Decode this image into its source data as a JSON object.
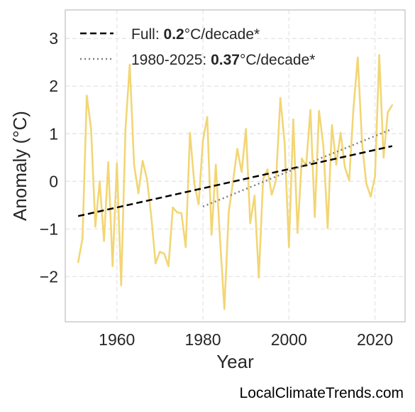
{
  "chart_data": {
    "type": "line",
    "title": "",
    "xlabel": "Year",
    "ylabel": "Anomaly (°C)",
    "xlim": [
      1948,
      2027
    ],
    "ylim": [
      -2.95,
      3.6
    ],
    "x_ticks": [
      1960,
      1980,
      2000,
      2020
    ],
    "y_ticks": [
      -2,
      -1,
      0,
      1,
      2,
      3
    ],
    "y_tick_labels": [
      "−2",
      "−1",
      "0",
      "1",
      "2",
      "3"
    ],
    "grid": true,
    "legend_position": "top-left",
    "colors": {
      "series": "#f2d675",
      "full_trend": "#000000",
      "recent_trend": "#808080"
    },
    "series": [
      {
        "values": [
          {
            "x": 1951,
            "y": -1.7
          },
          {
            "x": 1952,
            "y": -1.2
          },
          {
            "x": 1953,
            "y": 1.8
          },
          {
            "x": 1954,
            "y": 1.1
          },
          {
            "x": 1955,
            "y": -0.95
          },
          {
            "x": 1956,
            "y": 0.0
          },
          {
            "x": 1957,
            "y": -1.25
          },
          {
            "x": 1958,
            "y": 0.4
          },
          {
            "x": 1959,
            "y": -1.78
          },
          {
            "x": 1960,
            "y": 0.38
          },
          {
            "x": 1961,
            "y": -2.18
          },
          {
            "x": 1962,
            "y": 1.1
          },
          {
            "x": 1963,
            "y": 2.45
          },
          {
            "x": 1964,
            "y": 0.35
          },
          {
            "x": 1965,
            "y": -0.25
          },
          {
            "x": 1966,
            "y": 0.43
          },
          {
            "x": 1967,
            "y": 0.05
          },
          {
            "x": 1968,
            "y": -0.75
          },
          {
            "x": 1969,
            "y": -1.72
          },
          {
            "x": 1970,
            "y": -1.48
          },
          {
            "x": 1971,
            "y": -1.52
          },
          {
            "x": 1972,
            "y": -1.78
          },
          {
            "x": 1973,
            "y": -0.55
          },
          {
            "x": 1974,
            "y": -0.65
          },
          {
            "x": 1975,
            "y": -0.67
          },
          {
            "x": 1976,
            "y": -1.38
          },
          {
            "x": 1977,
            "y": 1.02
          },
          {
            "x": 1978,
            "y": -0.05
          },
          {
            "x": 1979,
            "y": -0.48
          },
          {
            "x": 1980,
            "y": 0.85
          },
          {
            "x": 1981,
            "y": 1.35
          },
          {
            "x": 1982,
            "y": -1.12
          },
          {
            "x": 1983,
            "y": 0.35
          },
          {
            "x": 1984,
            "y": -1.25
          },
          {
            "x": 1985,
            "y": -2.68
          },
          {
            "x": 1986,
            "y": -0.65
          },
          {
            "x": 1987,
            "y": 0.0
          },
          {
            "x": 1988,
            "y": 0.68
          },
          {
            "x": 1989,
            "y": 0.2
          },
          {
            "x": 1990,
            "y": 1.1
          },
          {
            "x": 1991,
            "y": -0.88
          },
          {
            "x": 1992,
            "y": -0.3
          },
          {
            "x": 1993,
            "y": -2.02
          },
          {
            "x": 1994,
            "y": 0.05
          },
          {
            "x": 1995,
            "y": 0.25
          },
          {
            "x": 1996,
            "y": -0.28
          },
          {
            "x": 1997,
            "y": 0.02
          },
          {
            "x": 1998,
            "y": 1.75
          },
          {
            "x": 1999,
            "y": 0.8
          },
          {
            "x": 2000,
            "y": -1.38
          },
          {
            "x": 2001,
            "y": 1.3
          },
          {
            "x": 2002,
            "y": -1.08
          },
          {
            "x": 2003,
            "y": 0.48
          },
          {
            "x": 2004,
            "y": 0.32
          },
          {
            "x": 2005,
            "y": 1.5
          },
          {
            "x": 2006,
            "y": -0.75
          },
          {
            "x": 2007,
            "y": 1.48
          },
          {
            "x": 2008,
            "y": 0.75
          },
          {
            "x": 2009,
            "y": -0.98
          },
          {
            "x": 2010,
            "y": 1.18
          },
          {
            "x": 2011,
            "y": 0.35
          },
          {
            "x": 2012,
            "y": 1.02
          },
          {
            "x": 2013,
            "y": 0.3
          },
          {
            "x": 2014,
            "y": 0.02
          },
          {
            "x": 2015,
            "y": 1.52
          },
          {
            "x": 2016,
            "y": 2.6
          },
          {
            "x": 2017,
            "y": 0.8
          },
          {
            "x": 2018,
            "y": -0.05
          },
          {
            "x": 2019,
            "y": -0.32
          },
          {
            "x": 2020,
            "y": 0.1
          },
          {
            "x": 2021,
            "y": 2.65
          },
          {
            "x": 2022,
            "y": 0.5
          },
          {
            "x": 2023,
            "y": 1.45
          },
          {
            "x": 2024,
            "y": 1.6
          }
        ]
      }
    ],
    "trend_lines": [
      {
        "style": "dashed",
        "x": [
          1951,
          2024
        ],
        "y": [
          -0.73,
          0.74
        ]
      },
      {
        "style": "dotted",
        "x": [
          1980,
          2024
        ],
        "y": [
          -0.53,
          1.1
        ]
      }
    ],
    "legend": [
      {
        "style": "dashed",
        "prefix": "Full: ",
        "bold": "0.2",
        "suffix": "°C/decade*"
      },
      {
        "style": "dotted",
        "prefix": "1980-2025: ",
        "bold": "0.37",
        "suffix": "°C/decade*"
      }
    ]
  },
  "watermark": "LocalClimateTrends.com"
}
